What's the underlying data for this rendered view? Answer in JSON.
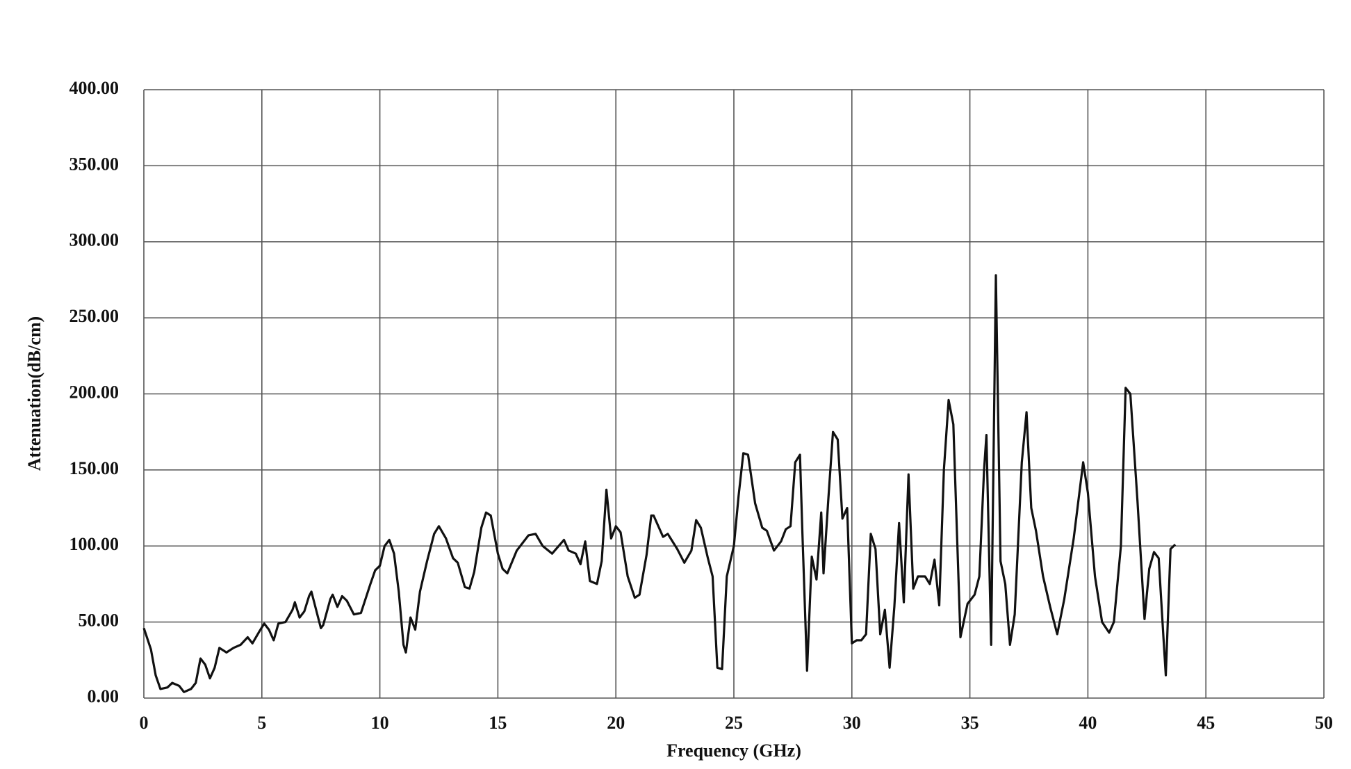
{
  "chart_data": {
    "type": "line",
    "x_label": "Frequency (GHz)",
    "y_label": "Attenuation(dB/cm)",
    "xlim": [
      0,
      50
    ],
    "xticks": [
      0,
      5,
      10,
      15,
      20,
      25,
      30,
      35,
      40,
      45,
      50
    ],
    "ylim": [
      0,
      400
    ],
    "yticks": [
      {
        "value": 0,
        "label": "0.00"
      },
      {
        "value": 50,
        "label": "50.00"
      },
      {
        "value": 100,
        "label": "100.00"
      },
      {
        "value": 150,
        "label": "150.00"
      },
      {
        "value": 200,
        "label": "200.00"
      },
      {
        "value": 250,
        "label": "250.00"
      },
      {
        "value": 300,
        "label": "300.00"
      },
      {
        "value": 350,
        "label": "350.00"
      },
      {
        "value": 400,
        "label": "400.00"
      }
    ],
    "grid": true,
    "series": [
      {
        "color": "#111111",
        "x": [
          0,
          0.3,
          0.5,
          0.7,
          1.0,
          1.2,
          1.5,
          1.7,
          2.0,
          2.2,
          2.4,
          2.6,
          2.8,
          3.0,
          3.2,
          3.5,
          3.8,
          4.1,
          4.4,
          4.6,
          4.9,
          5.1,
          5.3,
          5.5,
          5.7,
          6.0,
          6.3,
          6.4,
          6.6,
          6.8,
          7.0,
          7.1,
          7.3,
          7.5,
          7.6,
          7.9,
          8.0,
          8.2,
          8.4,
          8.6,
          8.9,
          9.2,
          9.6,
          9.8,
          10.0,
          10.2,
          10.4,
          10.6,
          10.8,
          11.0,
          11.1,
          11.3,
          11.5,
          11.7,
          12.0,
          12.3,
          12.5,
          12.8,
          13.1,
          13.3,
          13.6,
          13.8,
          14.0,
          14.3,
          14.5,
          14.7,
          15.0,
          15.2,
          15.4,
          15.8,
          16.3,
          16.6,
          16.9,
          17.3,
          17.8,
          18.0,
          18.3,
          18.5,
          18.7,
          18.9,
          19.2,
          19.4,
          19.6,
          19.8,
          20.0,
          20.2,
          20.5,
          20.8,
          21.0,
          21.3,
          21.5,
          21.6,
          22.0,
          22.2,
          22.6,
          22.9,
          23.2,
          23.4,
          23.6,
          23.9,
          24.1,
          24.3,
          24.5,
          24.7,
          25.0,
          25.2,
          25.4,
          25.6,
          25.9,
          26.2,
          26.4,
          26.7,
          27.0,
          27.2,
          27.4,
          27.6,
          27.8,
          27.9,
          28.1,
          28.3,
          28.5,
          28.7,
          28.8,
          29.0,
          29.2,
          29.4,
          29.6,
          29.8,
          30.0,
          30.2,
          30.4,
          30.6,
          30.8,
          31.0,
          31.2,
          31.4,
          31.6,
          31.8,
          32.0,
          32.2,
          32.4,
          32.6,
          32.8,
          33.1,
          33.3,
          33.5,
          33.7,
          33.9,
          34.1,
          34.3,
          34.6,
          34.9,
          35.2,
          35.4,
          35.6,
          35.7,
          35.9,
          36.1,
          36.3,
          36.5,
          36.7,
          36.9,
          37.2,
          37.4,
          37.6,
          37.8,
          38.1,
          38.4,
          38.7,
          39.0,
          39.4,
          39.8,
          40.0,
          40.3,
          40.6,
          40.9,
          41.1,
          41.4,
          41.6,
          41.8,
          42.1,
          42.4,
          42.6,
          42.8,
          43.0,
          43.2,
          43.3,
          43.5,
          43.7
        ],
        "values": [
          46,
          32,
          15,
          6,
          7,
          10,
          8,
          4,
          6,
          10,
          26,
          22,
          13,
          20,
          33,
          30,
          33,
          35,
          40,
          36,
          44,
          49,
          45,
          38,
          49,
          50,
          58,
          63,
          53,
          57,
          67,
          70,
          58,
          46,
          48,
          65,
          68,
          60,
          67,
          64,
          55,
          56,
          75,
          84,
          87,
          100,
          104,
          95,
          70,
          35,
          30,
          53,
          45,
          70,
          90,
          108,
          113,
          105,
          92,
          89,
          73,
          72,
          83,
          112,
          122,
          120,
          95,
          85,
          82,
          97,
          107,
          108,
          100,
          95,
          104,
          97,
          95,
          88,
          103,
          77,
          75,
          90,
          137,
          105,
          113,
          109,
          80,
          66,
          68,
          94,
          120,
          120,
          106,
          108,
          98,
          89,
          97,
          117,
          112,
          92,
          80,
          20,
          19,
          80,
          100,
          133,
          161,
          160,
          128,
          112,
          110,
          97,
          103,
          111,
          113,
          155,
          160,
          110,
          18,
          93,
          78,
          122,
          82,
          130,
          175,
          170,
          118,
          125,
          36,
          38,
          38,
          42,
          108,
          98,
          42,
          58,
          20,
          60,
          115,
          63,
          147,
          72,
          80,
          80,
          75,
          91,
          61,
          150,
          196,
          180,
          40,
          62,
          68,
          80,
          150,
          173,
          35,
          278,
          90,
          75,
          35,
          55,
          155,
          188,
          125,
          110,
          80,
          60,
          42,
          65,
          105,
          155,
          135,
          80,
          50,
          43,
          50,
          100,
          204,
          200,
          130,
          52,
          85,
          96,
          92,
          40,
          15,
          98,
          101
        ]
      }
    ]
  }
}
